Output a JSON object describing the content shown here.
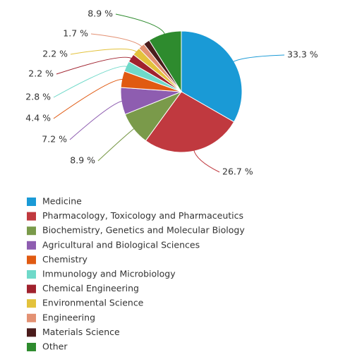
{
  "chart_data": {
    "type": "pie",
    "categories": [
      "Medicine",
      "Pharmacology, Toxicology and Pharmaceutics",
      "Biochemistry, Genetics and Molecular Biology",
      "Agricultural and Biological Sciences",
      "Chemistry",
      "Immunology and Microbiology",
      "Chemical Engineering",
      "Environmental Science",
      "Engineering",
      "Materials Science",
      "Other"
    ],
    "values": [
      33.3,
      26.7,
      8.9,
      7.2,
      4.4,
      2.8,
      2.2,
      2.2,
      1.7,
      1.7,
      8.9
    ],
    "value_labels": [
      "33.3 %",
      "26.7 %",
      "8.9 %",
      "7.2 %",
      "4.4 %",
      "2.8 %",
      "2.2 %",
      "2.2 %",
      "1.7 %",
      null,
      "8.9 %"
    ],
    "colors": [
      "#1a9ad6",
      "#c0393f",
      "#7a9a4a",
      "#8e5db0",
      "#e05a12",
      "#6fd9c9",
      "#a0222e",
      "#e3c23c",
      "#e39173",
      "#4a1c1c",
      "#2e8b2e"
    ]
  }
}
